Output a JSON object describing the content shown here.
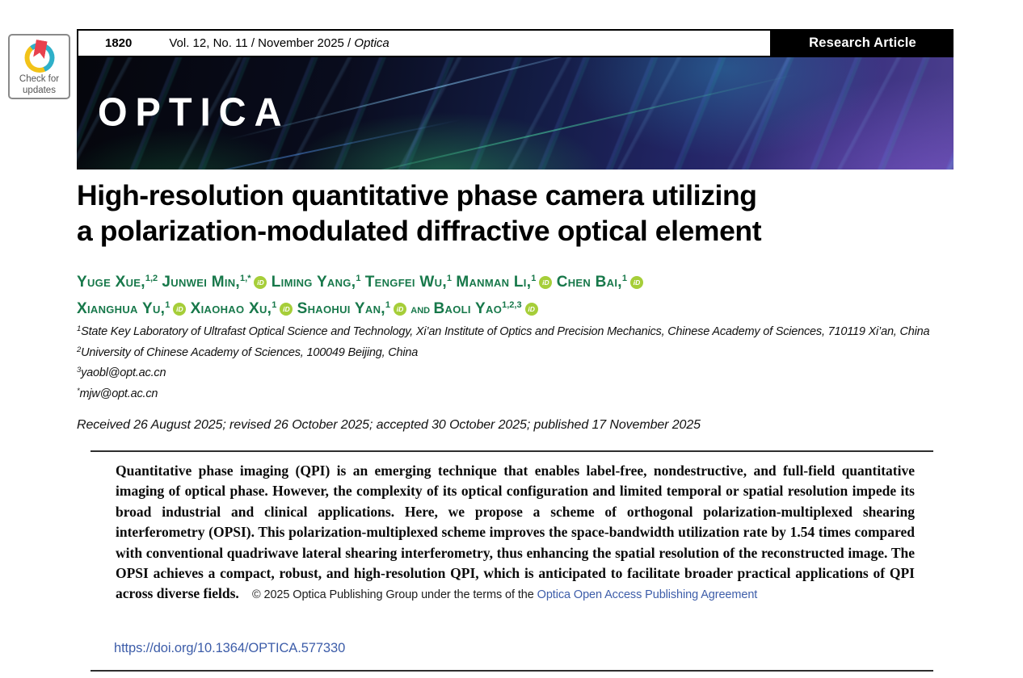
{
  "page": {
    "page_number": "1820",
    "issue_prefix": "Vol. 12, No. 11 / November 2025 / ",
    "journal_name": "Optica",
    "article_type": "Research Article",
    "check_badge_line1": "Check for",
    "check_badge_line2": "updates"
  },
  "banner": {
    "wordmark": "OPTICA"
  },
  "title": {
    "line1": "High-resolution quantitative phase camera utilizing",
    "line2": "a polarization-modulated diffractive optical element"
  },
  "authors": {
    "orcid_label": "iD",
    "and_label": "and",
    "list": [
      {
        "name": "Yuge Xue",
        "comma": true,
        "sup": "1,2",
        "orcid": false
      },
      {
        "name": "Junwei Min",
        "comma": true,
        "sup": "1,*",
        "orcid": true
      },
      {
        "name": "Liming Yang",
        "comma": true,
        "sup": "1",
        "orcid": false
      },
      {
        "name": "Tengfei Wu",
        "comma": true,
        "sup": "1",
        "orcid": false
      },
      {
        "name": "Manman Li",
        "comma": true,
        "sup": "1",
        "orcid": true
      },
      {
        "name": "Chen Bai",
        "comma": true,
        "sup": "1",
        "orcid": true,
        "break_after": true
      },
      {
        "name": "Xianghua Yu",
        "comma": true,
        "sup": "1",
        "orcid": true
      },
      {
        "name": "Xiaohao Xu",
        "comma": true,
        "sup": "1",
        "orcid": true
      },
      {
        "name": "Shaohui Yan",
        "comma": true,
        "sup": "1",
        "orcid": true
      },
      {
        "name": "Baoli Yao",
        "comma": false,
        "sup": "1,2,3",
        "orcid": true,
        "and_before": true
      }
    ]
  },
  "affiliations": [
    {
      "sup": "1",
      "text": "State Key Laboratory of Ultrafast Optical Science and Technology, Xi’an Institute of Optics and Precision Mechanics, Chinese Academy of Sciences, 710119 Xi’an, China"
    },
    {
      "sup": "2",
      "text": "University of Chinese Academy of Sciences, 100049 Beijing, China"
    },
    {
      "sup": "3",
      "text": "yaobl@opt.ac.cn"
    },
    {
      "sup": "*",
      "text": "mjw@opt.ac.cn"
    }
  ],
  "history": "Received 26 August 2025; revised 26 October 2025; accepted 30 October 2025; published 17 November 2025",
  "abstract": {
    "text": "Quantitative phase imaging (QPI) is an emerging technique that enables label-free, nondestructive, and full-field quantitative imaging of optical phase. However, the complexity of its optical configuration and limited temporal or spatial resolution impede its broad industrial and clinical applications. Here, we propose a scheme of orthogonal polarization-multiplexed shearing interferometry (OPSI). This polarization-multiplexed scheme improves the space-bandwidth utilization rate by 1.54 times compared with conventional quadriwave lateral shearing interferometry, thus enhancing the spatial resolution of the reconstructed image. The OPSI achieves a compact, robust, and high-resolution QPI, which is anticipated to facilitate broader practical applications of QPI across diverse fields.",
    "copyright_prefix": "© 2025 Optica Publishing Group under the terms of the ",
    "license_link": "Optica Open Access Publishing Agreement"
  },
  "doi": "https://doi.org/10.1364/OPTICA.577330",
  "colors": {
    "author_green": "#17784A",
    "orcid_green": "#A6CE39",
    "link_blue": "#3D5DA9"
  }
}
